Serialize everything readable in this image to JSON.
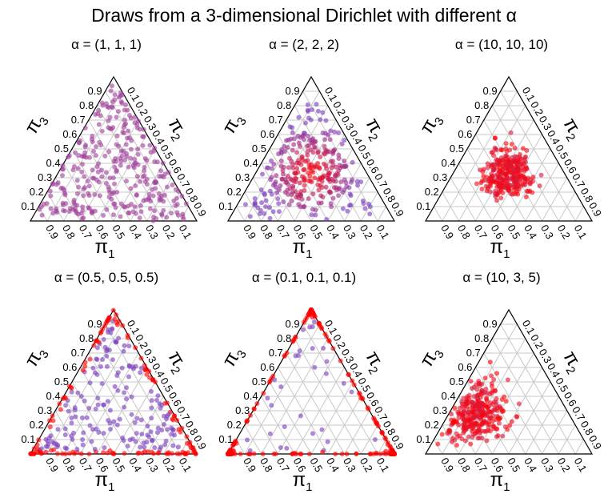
{
  "title": "Draws from a 3-dimensional Dirichlet with different α",
  "axis_labels": {
    "pi1": "π",
    "pi1_sub": "1",
    "pi2": "π",
    "pi2_sub": "2",
    "pi3": "π",
    "pi3_sub": "3"
  },
  "ticks": [
    "0.1",
    "0.2",
    "0.3",
    "0.4",
    "0.5",
    "0.6",
    "0.7",
    "0.8",
    "0.9"
  ],
  "colors": {
    "low_density": "#7b3fbf",
    "high_density": "#ff0000",
    "mid": "#a0409a",
    "grid": "#c8c8c8",
    "axis": "#000000"
  },
  "chart_data": [
    {
      "type": "scatter",
      "subtype": "ternary",
      "title": "α = (1, 1, 1)",
      "alpha": [
        1,
        1,
        1
      ],
      "n_points": 300,
      "xlabel": "π1",
      "ylabel": "π3",
      "side_label": "π2"
    },
    {
      "type": "scatter",
      "subtype": "ternary",
      "title": "α = (2, 2, 2)",
      "alpha": [
        2,
        2,
        2
      ],
      "n_points": 300,
      "xlabel": "π1",
      "ylabel": "π3",
      "side_label": "π2"
    },
    {
      "type": "scatter",
      "subtype": "ternary",
      "title": "α = (10, 10, 10)",
      "alpha": [
        10,
        10,
        10
      ],
      "n_points": 300,
      "xlabel": "π1",
      "ylabel": "π3",
      "side_label": "π2"
    },
    {
      "type": "scatter",
      "subtype": "ternary",
      "title": "α = (0.5, 0.5, 0.5)",
      "alpha": [
        0.5,
        0.5,
        0.5
      ],
      "n_points": 300,
      "xlabel": "π1",
      "ylabel": "π3",
      "side_label": "π2"
    },
    {
      "type": "scatter",
      "subtype": "ternary",
      "title": "α = (0.1, 0.1, 0.1)",
      "alpha": [
        0.1,
        0.1,
        0.1
      ],
      "n_points": 300,
      "xlabel": "π1",
      "ylabel": "π3",
      "side_label": "π2"
    },
    {
      "type": "scatter",
      "subtype": "ternary",
      "title": "α = (10, 3, 5)",
      "alpha": [
        10,
        3,
        5
      ],
      "n_points": 300,
      "xlabel": "π1",
      "ylabel": "π3",
      "side_label": "π2"
    }
  ]
}
